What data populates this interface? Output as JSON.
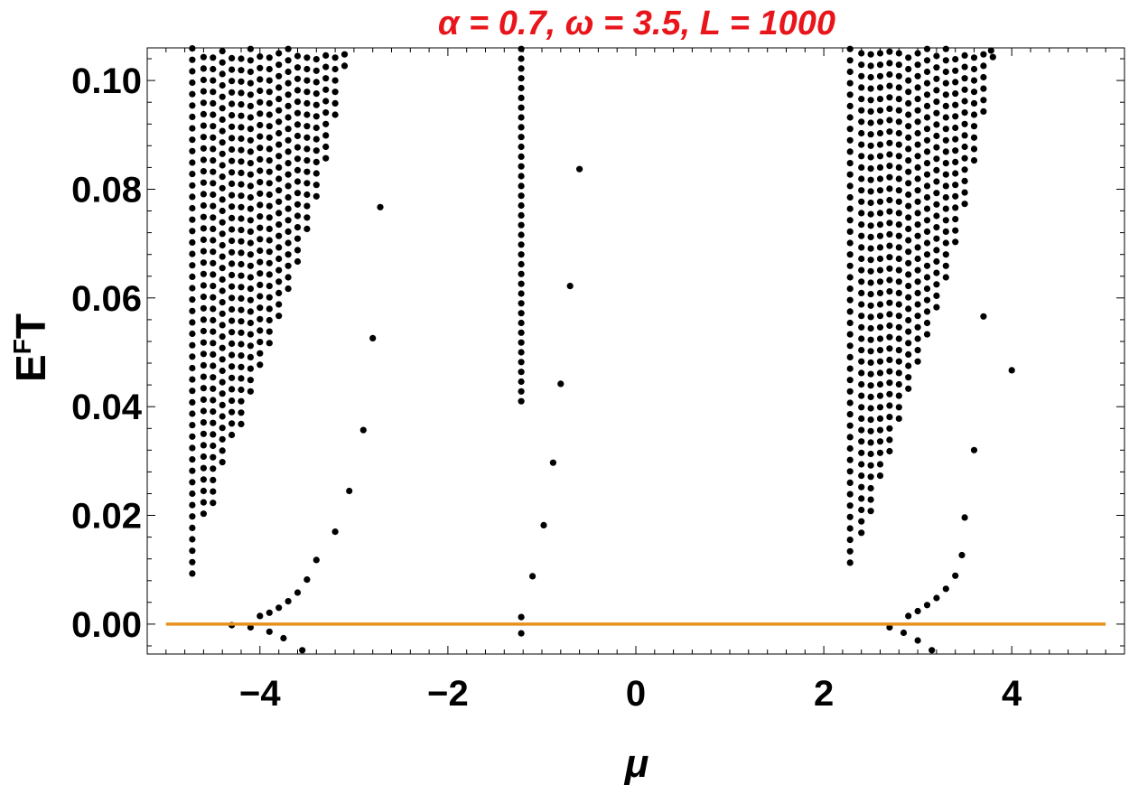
{
  "chart_data": {
    "type": "scatter",
    "title": "α = 0.7, ω = 3.5, L = 1000",
    "title_color": "#e8151b",
    "xlabel": "μ",
    "ylabel": "E",
    "ylabel_superscript": "F",
    "ylabel_suffix": "T",
    "xlim": [
      -5.2,
      5.2
    ],
    "ylim": [
      -0.0055,
      0.106
    ],
    "x_ticks": [
      "−4",
      "−2",
      "0",
      "2",
      "4"
    ],
    "x_tick_values": [
      -4,
      -2,
      0,
      2,
      4
    ],
    "y_ticks": [
      "0.00",
      "0.02",
      "0.04",
      "0.06",
      "0.08",
      "0.10"
    ],
    "y_tick_values": [
      0.0,
      0.02,
      0.04,
      0.06,
      0.08,
      0.1
    ],
    "grid": false,
    "point_color": "#000000",
    "reference_line": {
      "y": 0,
      "x": [
        -5.0,
        5.0
      ],
      "color": "#e8901c"
    },
    "sparse_points": [
      [
        -4.0,
        0.0015
      ],
      [
        -3.9,
        0.0021
      ],
      [
        -3.8,
        0.003
      ],
      [
        -3.7,
        0.0042
      ],
      [
        -3.6,
        0.0058
      ],
      [
        -3.5,
        0.0082
      ],
      [
        -3.4,
        0.0118
      ],
      [
        -3.2,
        0.017
      ],
      [
        -3.05,
        0.0245
      ],
      [
        -2.9,
        0.0357
      ],
      [
        -2.8,
        0.0526
      ],
      [
        -2.72,
        0.0767
      ],
      [
        -4.3,
        -0.0002
      ],
      [
        -4.1,
        -0.0006
      ],
      [
        -3.9,
        -0.0014
      ],
      [
        -3.75,
        -0.0026
      ],
      [
        -3.55,
        -0.0048
      ],
      [
        -1.22,
        0.0013
      ],
      [
        -1.22,
        -0.0017
      ],
      [
        -1.1,
        0.0088
      ],
      [
        -0.98,
        0.0182
      ],
      [
        -0.88,
        0.0297
      ],
      [
        -0.8,
        0.0442
      ],
      [
        -0.7,
        0.0622
      ],
      [
        -0.6,
        0.0837
      ],
      [
        2.9,
        0.0015
      ],
      [
        3.0,
        0.0024
      ],
      [
        3.1,
        0.0035
      ],
      [
        3.2,
        0.0048
      ],
      [
        3.3,
        0.0065
      ],
      [
        3.4,
        0.0089
      ],
      [
        3.47,
        0.0127
      ],
      [
        3.5,
        0.0196
      ],
      [
        3.6,
        0.032
      ],
      [
        3.7,
        0.0566
      ],
      [
        3.78,
        0.1055
      ],
      [
        4.0,
        0.0467
      ],
      [
        2.7,
        -0.0006
      ],
      [
        2.85,
        -0.0016
      ],
      [
        3.0,
        -0.003
      ],
      [
        3.15,
        -0.0048
      ]
    ],
    "columns": [
      {
        "x": -4.72,
        "y_min": 0.0093,
        "y_max": 0.106,
        "spacing": 0.0021
      },
      {
        "x": -4.6,
        "y_min": 0.0203,
        "y_max": 0.106,
        "spacing": 0.0021
      },
      {
        "x": -4.5,
        "y_min": 0.0223,
        "y_max": 0.106,
        "spacing": 0.0021
      },
      {
        "x": -4.4,
        "y_min": 0.0298,
        "y_max": 0.106,
        "spacing": 0.0021
      },
      {
        "x": -4.3,
        "y_min": 0.0348,
        "y_max": 0.106,
        "spacing": 0.0021
      },
      {
        "x": -4.2,
        "y_min": 0.0368,
        "y_max": 0.106,
        "spacing": 0.0021
      },
      {
        "x": -4.1,
        "y_min": 0.0428,
        "y_max": 0.106,
        "spacing": 0.0021
      },
      {
        "x": -4.0,
        "y_min": 0.0477,
        "y_max": 0.106,
        "spacing": 0.0021
      },
      {
        "x": -3.9,
        "y_min": 0.0517,
        "y_max": 0.106,
        "spacing": 0.0021
      },
      {
        "x": -3.8,
        "y_min": 0.0567,
        "y_max": 0.106,
        "spacing": 0.0021
      },
      {
        "x": -3.7,
        "y_min": 0.0617,
        "y_max": 0.106,
        "spacing": 0.0021
      },
      {
        "x": -3.6,
        "y_min": 0.0667,
        "y_max": 0.106,
        "spacing": 0.0021
      },
      {
        "x": -3.5,
        "y_min": 0.0727,
        "y_max": 0.106,
        "spacing": 0.0021
      },
      {
        "x": -3.4,
        "y_min": 0.0787,
        "y_max": 0.106,
        "spacing": 0.0021
      },
      {
        "x": -3.3,
        "y_min": 0.0857,
        "y_max": 0.106,
        "spacing": 0.0021
      },
      {
        "x": -3.2,
        "y_min": 0.0937,
        "y_max": 0.106,
        "spacing": 0.0021
      },
      {
        "x": -3.1,
        "y_min": 0.1027,
        "y_max": 0.106,
        "spacing": 0.0021
      },
      {
        "x": -1.22,
        "y_min": 0.041,
        "y_max": 0.106,
        "spacing": 0.0018
      },
      {
        "x": 2.28,
        "y_min": 0.0113,
        "y_max": 0.106,
        "spacing": 0.0021
      },
      {
        "x": 2.4,
        "y_min": 0.0168,
        "y_max": 0.106,
        "spacing": 0.0021
      },
      {
        "x": 2.5,
        "y_min": 0.0208,
        "y_max": 0.106,
        "spacing": 0.0021
      },
      {
        "x": 2.6,
        "y_min": 0.0273,
        "y_max": 0.106,
        "spacing": 0.0021
      },
      {
        "x": 2.7,
        "y_min": 0.0318,
        "y_max": 0.106,
        "spacing": 0.0021
      },
      {
        "x": 2.8,
        "y_min": 0.0378,
        "y_max": 0.106,
        "spacing": 0.0021
      },
      {
        "x": 2.9,
        "y_min": 0.0433,
        "y_max": 0.106,
        "spacing": 0.0021
      },
      {
        "x": 3.0,
        "y_min": 0.0483,
        "y_max": 0.106,
        "spacing": 0.0021
      },
      {
        "x": 3.1,
        "y_min": 0.0533,
        "y_max": 0.106,
        "spacing": 0.0021
      },
      {
        "x": 3.2,
        "y_min": 0.0583,
        "y_max": 0.106,
        "spacing": 0.0021
      },
      {
        "x": 3.3,
        "y_min": 0.0638,
        "y_max": 0.106,
        "spacing": 0.0021
      },
      {
        "x": 3.4,
        "y_min": 0.0703,
        "y_max": 0.106,
        "spacing": 0.0021
      },
      {
        "x": 3.5,
        "y_min": 0.0773,
        "y_max": 0.106,
        "spacing": 0.0021
      },
      {
        "x": 3.6,
        "y_min": 0.0853,
        "y_max": 0.106,
        "spacing": 0.0021
      },
      {
        "x": 3.7,
        "y_min": 0.0943,
        "y_max": 0.106,
        "spacing": 0.0021
      },
      {
        "x": 3.8,
        "y_min": 0.1043,
        "y_max": 0.106,
        "spacing": 0.0021
      }
    ]
  }
}
